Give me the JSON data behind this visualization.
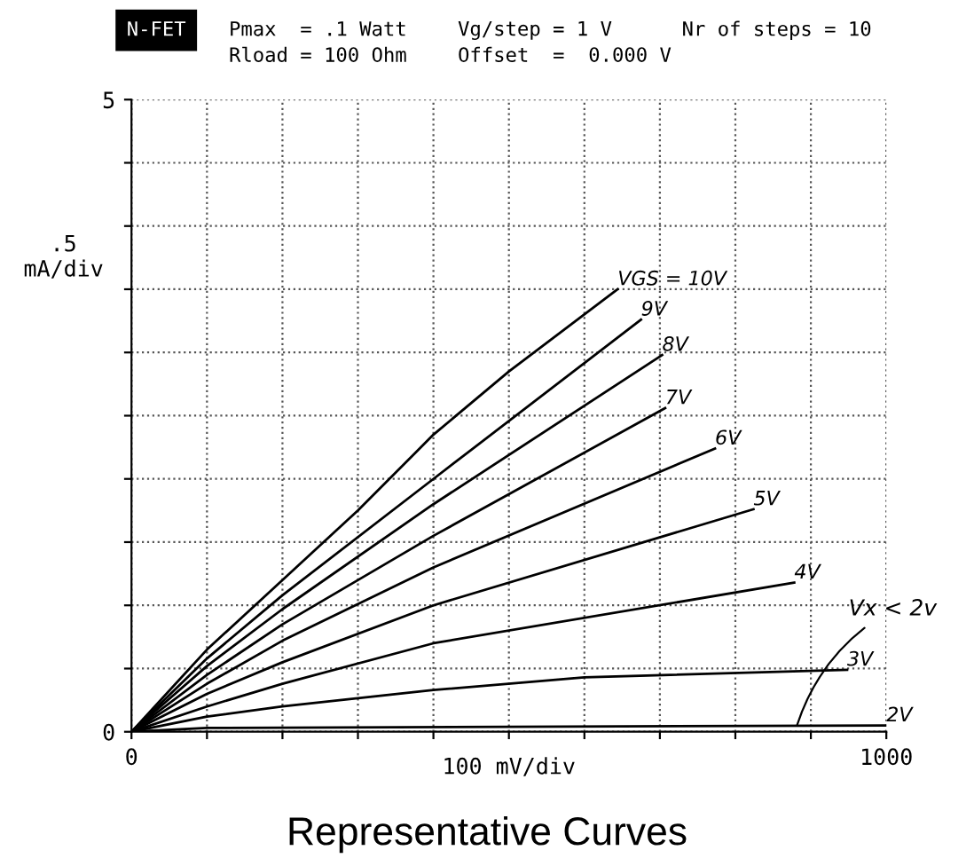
{
  "chart_data": {
    "type": "line",
    "title": "Representative Curves",
    "xlabel": "100 mV/div",
    "ylabel": ".5\nmA/div",
    "xlim": [
      0,
      1000
    ],
    "ylim": [
      0,
      5
    ],
    "xticks": [
      0,
      {
        "value": 100,
        "label": null
      },
      {
        "value": 200,
        "label": null
      },
      {
        "value": 300,
        "label": null
      },
      {
        "value": 400,
        "label": null
      },
      {
        "value": 500,
        "label": null
      },
      {
        "value": 600,
        "label": null
      },
      {
        "value": 700,
        "label": null
      },
      {
        "value": 800,
        "label": null
      },
      {
        "value": 900,
        "label": null
      },
      1000
    ],
    "yticks": [
      0,
      {
        "value": 0.5,
        "label": null
      },
      {
        "value": 1,
        "label": null
      },
      {
        "value": 1.5,
        "label": null
      },
      {
        "value": 2,
        "label": null
      },
      {
        "value": 2.5,
        "label": null
      },
      {
        "value": 3,
        "label": null
      },
      {
        "value": 3.5,
        "label": null
      },
      {
        "value": 4,
        "label": null
      },
      {
        "value": 4.5,
        "label": null
      },
      5
    ],
    "grid": "dotted",
    "marker": "none",
    "line_style": "solid",
    "legend": false,
    "series": [
      {
        "name": "VGS = 10V",
        "color": "#000000",
        "x": [
          0,
          100,
          200,
          300,
          400,
          500,
          644
        ],
        "values": [
          0,
          0.65,
          1.2,
          1.75,
          2.35,
          2.85,
          3.5
        ]
      },
      {
        "name": "9V",
        "color": "#000000",
        "x": [
          0,
          100,
          200,
          400,
          675
        ],
        "values": [
          0,
          0.58,
          1.08,
          2.0,
          3.26
        ]
      },
      {
        "name": "8V",
        "color": "#000000",
        "x": [
          0,
          100,
          200,
          400,
          703
        ],
        "values": [
          0,
          0.52,
          0.97,
          1.8,
          2.98
        ]
      },
      {
        "name": "7V",
        "color": "#000000",
        "x": [
          0,
          100,
          200,
          400,
          707
        ],
        "values": [
          0,
          0.45,
          0.85,
          1.55,
          2.56
        ]
      },
      {
        "name": "6V",
        "color": "#000000",
        "x": [
          0,
          100,
          200,
          400,
          773
        ],
        "values": [
          0,
          0.38,
          0.72,
          1.3,
          2.24
        ]
      },
      {
        "name": "5V",
        "color": "#000000",
        "x": [
          0,
          100,
          200,
          400,
          824
        ],
        "values": [
          0,
          0.3,
          0.55,
          1.0,
          1.76
        ]
      },
      {
        "name": "4V",
        "color": "#000000",
        "x": [
          0,
          100,
          200,
          400,
          878
        ],
        "values": [
          0,
          0.2,
          0.38,
          0.7,
          1.18
        ]
      },
      {
        "name": "3V",
        "color": "#000000",
        "x": [
          0,
          100,
          200,
          400,
          600,
          948
        ],
        "values": [
          0,
          0.12,
          0.2,
          0.33,
          0.43,
          0.49
        ]
      },
      {
        "name": "2V",
        "color": "#000000",
        "x": [
          0,
          100,
          1000
        ],
        "values": [
          0,
          0.03,
          0.05
        ]
      }
    ],
    "annotations": [
      "N-FET",
      "Pmax  = .1 Watt",
      "Vg/step = 1 V",
      "Nr of steps = 10",
      "Rload = 100 Ohm",
      "Offset  =  0.000 V",
      {
        "text": "Vx < 2v",
        "x": 880,
        "y": 0.02
      }
    ]
  }
}
